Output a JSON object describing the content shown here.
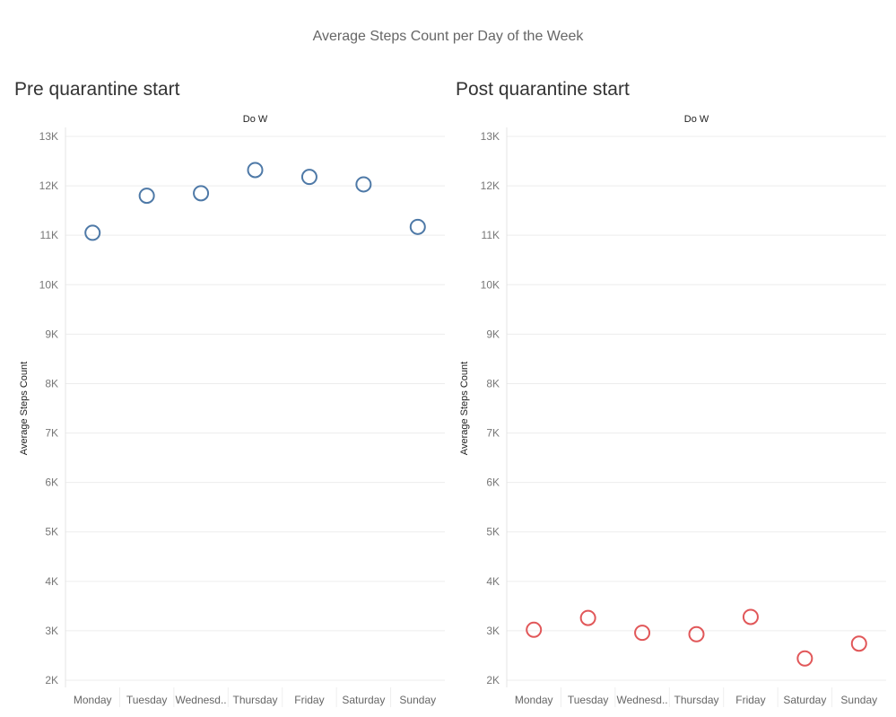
{
  "title": "Average Steps Count per Day of the Week",
  "colors": {
    "pre": "#4e79a7",
    "post": "#e15759",
    "gridline": "#ededed"
  },
  "chart_data": [
    {
      "type": "scatter",
      "title": "Pre quarantine start",
      "xlabel": "Do W",
      "ylabel": "Average Steps Count",
      "categories": [
        "Monday",
        "Tuesday",
        "Wednesd..",
        "Thursday",
        "Friday",
        "Saturday",
        "Sunday"
      ],
      "values": [
        11050,
        11800,
        11850,
        12320,
        12180,
        12030,
        11170
      ],
      "ylim": [
        2000,
        13000
      ],
      "yticks": [
        2000,
        3000,
        4000,
        5000,
        6000,
        7000,
        8000,
        9000,
        10000,
        11000,
        12000,
        13000
      ],
      "ytick_labels": [
        "2K",
        "3K",
        "4K",
        "5K",
        "6K",
        "7K",
        "8K",
        "9K",
        "10K",
        "11K",
        "12K",
        "13K"
      ],
      "marker": "open-circle",
      "color": "#4e79a7",
      "grid": true
    },
    {
      "type": "scatter",
      "title": "Post quarantine start",
      "xlabel": "Do W",
      "ylabel": "Average Steps Count",
      "categories": [
        "Monday",
        "Tuesday",
        "Wednesd..",
        "Thursday",
        "Friday",
        "Saturday",
        "Sunday"
      ],
      "values": [
        3020,
        3260,
        2960,
        2930,
        3280,
        2440,
        2740
      ],
      "ylim": [
        2000,
        13000
      ],
      "yticks": [
        2000,
        3000,
        4000,
        5000,
        6000,
        7000,
        8000,
        9000,
        10000,
        11000,
        12000,
        13000
      ],
      "ytick_labels": [
        "2K",
        "3K",
        "4K",
        "5K",
        "6K",
        "7K",
        "8K",
        "9K",
        "10K",
        "11K",
        "12K",
        "13K"
      ],
      "marker": "open-circle",
      "color": "#e15759",
      "grid": true
    }
  ]
}
